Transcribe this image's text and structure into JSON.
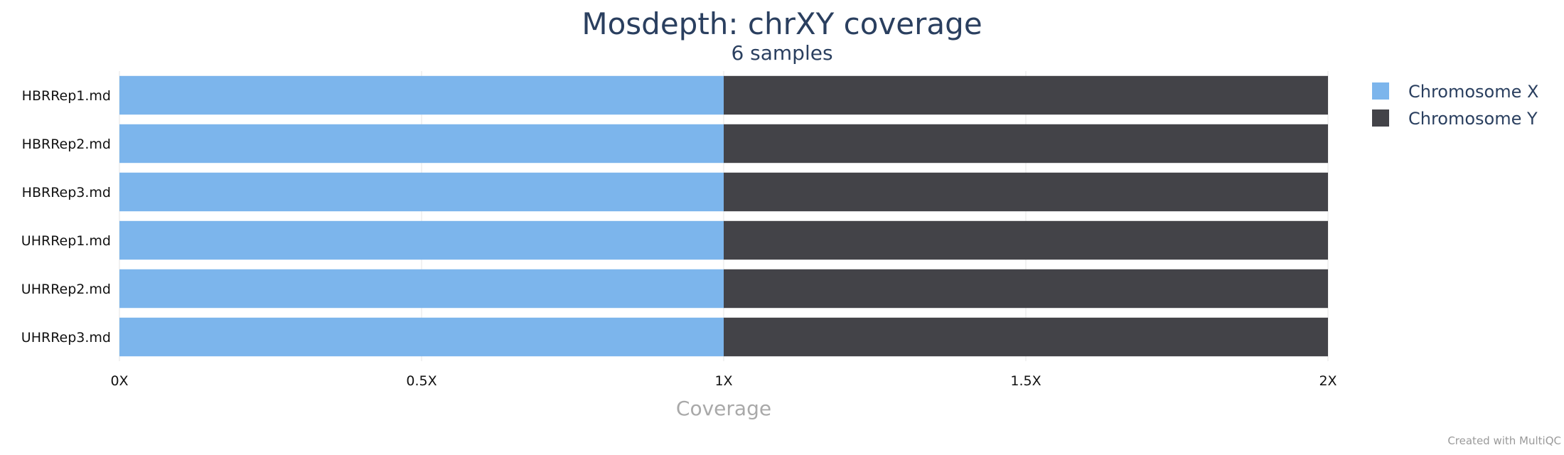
{
  "chart_data": {
    "type": "bar",
    "orientation": "horizontal",
    "stacked": true,
    "title": "Mosdepth: chrXY coverage",
    "subtitle": "6 samples",
    "xlabel": "Coverage",
    "ylabel": "",
    "categories": [
      "HBRRep1.md",
      "HBRRep2.md",
      "HBRRep3.md",
      "UHRRep1.md",
      "UHRRep2.md",
      "UHRRep3.md"
    ],
    "series": [
      {
        "name": "Chromosome X",
        "color": "#7cb5ec",
        "values": [
          1,
          1,
          1,
          1,
          1,
          1
        ]
      },
      {
        "name": "Chromosome Y",
        "color": "#434348",
        "values": [
          1,
          1,
          1,
          1,
          1,
          1
        ]
      }
    ],
    "xlim": [
      0,
      2
    ],
    "xticks": [
      0,
      0.5,
      1,
      1.5,
      2
    ],
    "xtick_labels": [
      "0X",
      "0.5X",
      "1X",
      "1.5X",
      "2X"
    ],
    "grid": true,
    "legend_position": "right"
  },
  "credit": "Created with MultiQC"
}
